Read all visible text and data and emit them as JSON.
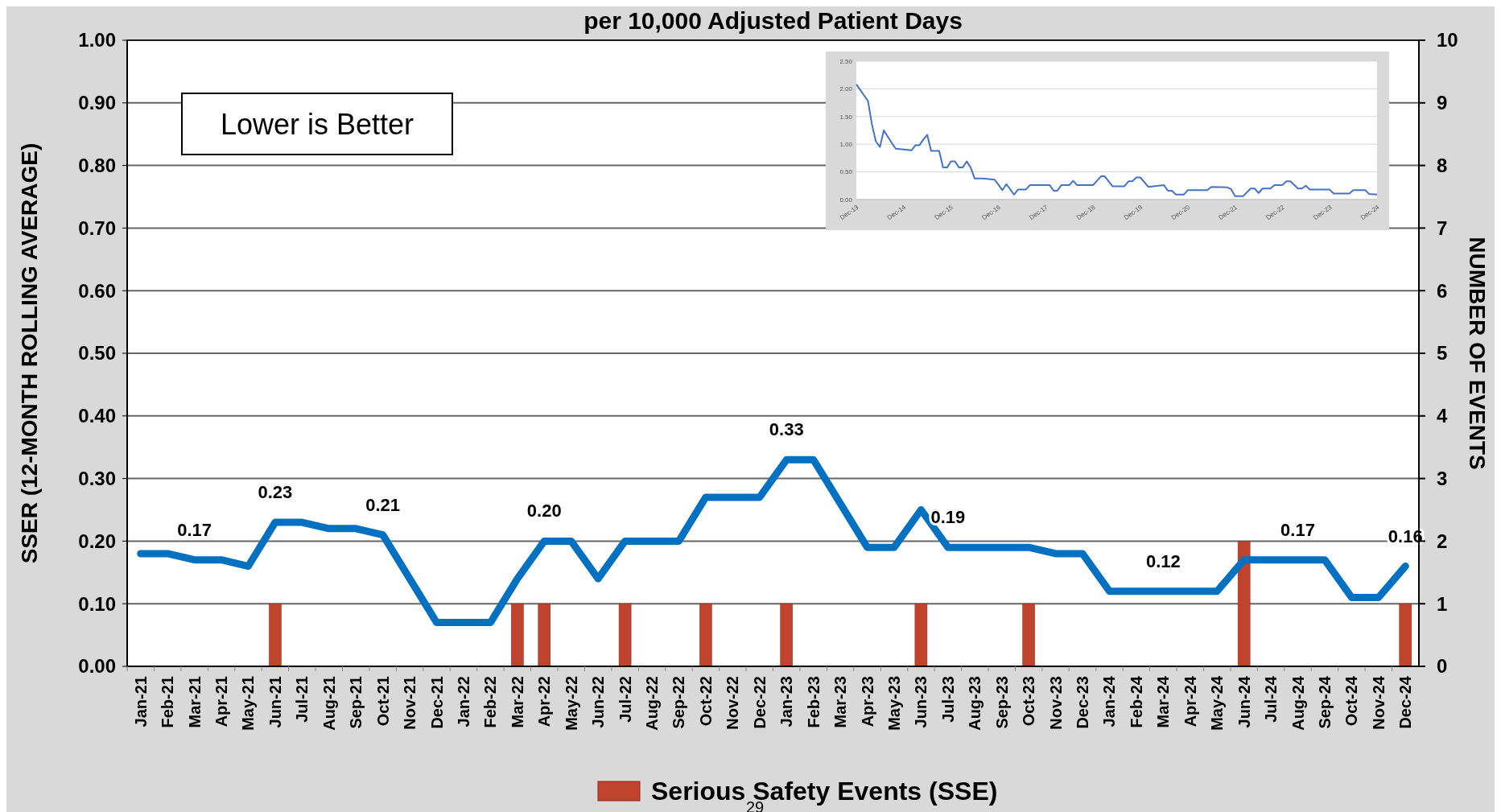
{
  "chart_data": [
    {
      "type": "line",
      "title": "per 10,000 Adjusted Patient Days",
      "ylabel": "SSER (12-MONTH ROLLING AVERAGE)",
      "y2label": "NUMBER OF EVENTS",
      "categories": [
        "Jan-21",
        "Feb-21",
        "Mar-21",
        "Apr-21",
        "May-21",
        "Jun-21",
        "Jul-21",
        "Aug-21",
        "Sep-21",
        "Oct-21",
        "Nov-21",
        "Dec-21",
        "Jan-22",
        "Feb-22",
        "Mar-22",
        "Apr-22",
        "May-22",
        "Jun-22",
        "Jul-22",
        "Aug-22",
        "Sep-22",
        "Oct-22",
        "Nov-22",
        "Dec-22",
        "Jan-23",
        "Feb-23",
        "Mar-23",
        "Apr-23",
        "May-23",
        "Jun-23",
        "Jul-23",
        "Aug-23",
        "Sep-23",
        "Oct-23",
        "Nov-23",
        "Dec-23",
        "Jan-24",
        "Feb-24",
        "Mar-24",
        "Apr-24",
        "May-24",
        "Jun-24",
        "Jul-24",
        "Aug-24",
        "Sep-24",
        "Oct-24",
        "Nov-24",
        "Dec-24"
      ],
      "series": [
        {
          "name": "Serious Safety Events (SSE)",
          "type": "bar",
          "axis": "y2",
          "color": "#c0432e",
          "values": [
            0,
            0,
            0,
            0,
            0,
            1,
            0,
            0,
            0,
            0,
            0,
            0,
            0,
            0,
            1,
            1,
            0,
            0,
            1,
            0,
            0,
            1,
            0,
            0,
            1,
            0,
            0,
            0,
            0,
            1,
            0,
            0,
            0,
            1,
            0,
            0,
            0,
            0,
            0,
            0,
            0,
            2,
            0,
            0,
            0,
            0,
            0,
            1
          ]
        },
        {
          "axis": "y",
          "color": "#0070c0",
          "values": [
            0.18,
            0.18,
            0.17,
            0.17,
            0.16,
            0.23,
            0.23,
            0.22,
            0.22,
            0.21,
            0.14,
            0.07,
            0.07,
            0.07,
            0.14,
            0.2,
            0.2,
            0.14,
            0.2,
            0.2,
            0.2,
            0.27,
            0.27,
            0.27,
            0.33,
            0.33,
            0.26,
            0.19,
            0.19,
            0.25,
            0.19,
            0.19,
            0.19,
            0.19,
            0.18,
            0.18,
            0.12,
            0.12,
            0.12,
            0.12,
            0.12,
            0.17,
            0.17,
            0.17,
            0.17,
            0.11,
            0.11,
            0.16
          ],
          "value_labels": [
            null,
            null,
            "0.17",
            null,
            null,
            "0.23",
            null,
            null,
            null,
            "0.21",
            null,
            null,
            null,
            null,
            null,
            "0.20",
            null,
            null,
            null,
            null,
            null,
            null,
            null,
            null,
            "0.33",
            null,
            null,
            null,
            null,
            null,
            "0.19",
            null,
            null,
            null,
            null,
            null,
            null,
            null,
            "0.12",
            null,
            null,
            null,
            null,
            "0.17",
            null,
            null,
            null,
            "0.16"
          ]
        }
      ],
      "ylim": [
        0,
        1
      ],
      "yticks": [
        {
          "value": 0,
          "label": "0.00"
        },
        {
          "value": 0.1,
          "label": "0.10"
        },
        {
          "value": 0.2,
          "label": "0.20"
        },
        {
          "value": 0.3,
          "label": "0.30"
        },
        {
          "value": 0.4,
          "label": "0.40"
        },
        {
          "value": 0.5,
          "label": "0.50"
        },
        {
          "value": 0.6,
          "label": "0.60"
        },
        {
          "value": 0.7,
          "label": "0.70"
        },
        {
          "value": 0.8,
          "label": "0.80"
        },
        {
          "value": 0.9,
          "label": "0.90"
        },
        {
          "value": 1,
          "label": "1.00"
        }
      ],
      "y2lim": [
        0,
        10
      ],
      "y2ticks": [
        0,
        1,
        2,
        3,
        4,
        5,
        6,
        7,
        8,
        9,
        10
      ],
      "grid": "y",
      "legend": "bottom",
      "line_style": "solid",
      "annotations": [
        "Lower is Better",
        "29"
      ]
    },
    {
      "type": "line",
      "color": "#4472c4",
      "grid": "y",
      "line_style": "solid",
      "x": [
        "2013-12",
        "2014-03",
        "2014-04",
        "2014-05",
        "2014-06",
        "2014-07",
        "2014-09",
        "2014-10",
        "2015-02",
        "2015-03",
        "2015-04",
        "2015-05",
        "2015-06",
        "2015-07",
        "2015-09",
        "2015-10",
        "2015-11",
        "2015-12",
        "2016-01",
        "2016-02",
        "2016-03",
        "2016-04",
        "2016-05",
        "2016-06",
        "2016-08",
        "2016-11",
        "2016-12",
        "2017-01",
        "2017-02",
        "2017-04",
        "2017-05",
        "2017-07",
        "2017-08",
        "2018-01",
        "2018-02",
        "2018-03",
        "2018-04",
        "2018-06",
        "2018-07",
        "2018-08",
        "2018-12",
        "2019-02",
        "2019-03",
        "2019-05",
        "2019-08",
        "2019-09",
        "2019-10",
        "2019-11",
        "2019-12",
        "2020-02",
        "2020-06",
        "2020-07",
        "2020-08",
        "2020-09",
        "2020-11",
        "2020-12",
        "2021-05",
        "2021-06",
        "2021-10",
        "2021-11",
        "2021-12",
        "2022-02",
        "2022-04",
        "2022-05",
        "2022-06",
        "2022-07",
        "2022-09",
        "2022-10",
        "2022-12",
        "2023-01",
        "2023-02",
        "2023-04",
        "2023-05",
        "2023-06",
        "2023-07",
        "2023-12",
        "2024-01",
        "2024-05",
        "2024-06",
        "2024-09",
        "2024-10",
        "2024-12"
      ],
      "values": [
        2.08,
        1.78,
        1.35,
        1.05,
        0.95,
        1.25,
        1.02,
        0.92,
        0.89,
        0.98,
        0.98,
        1.08,
        1.17,
        0.88,
        0.88,
        0.58,
        0.58,
        0.69,
        0.69,
        0.58,
        0.58,
        0.69,
        0.58,
        0.38,
        0.38,
        0.36,
        0.27,
        0.17,
        0.28,
        0.09,
        0.18,
        0.18,
        0.26,
        0.26,
        0.16,
        0.16,
        0.26,
        0.26,
        0.34,
        0.26,
        0.26,
        0.42,
        0.42,
        0.24,
        0.24,
        0.33,
        0.33,
        0.4,
        0.4,
        0.23,
        0.26,
        0.16,
        0.16,
        0.09,
        0.09,
        0.17,
        0.17,
        0.23,
        0.22,
        0.19,
        0.06,
        0.06,
        0.2,
        0.2,
        0.12,
        0.2,
        0.2,
        0.26,
        0.26,
        0.33,
        0.33,
        0.2,
        0.2,
        0.25,
        0.18,
        0.18,
        0.11,
        0.11,
        0.17,
        0.17,
        0.1,
        0.09
      ],
      "xlim": [
        "2013-12",
        "2024-12"
      ],
      "xticks": [
        {
          "value": "2013-12",
          "label": "Dec-13"
        },
        {
          "value": "2014-12",
          "label": "Dec-14"
        },
        {
          "value": "2015-12",
          "label": "Dec-15"
        },
        {
          "value": "2016-12",
          "label": "Dec-16"
        },
        {
          "value": "2017-12",
          "label": "Dec-17"
        },
        {
          "value": "2018-12",
          "label": "Dec-18"
        },
        {
          "value": "2019-12",
          "label": "Dec-19"
        },
        {
          "value": "2020-12",
          "label": "Dec-20"
        },
        {
          "value": "2021-12",
          "label": "Dec-21"
        },
        {
          "value": "2022-12",
          "label": "Dec-22"
        },
        {
          "value": "2023-12",
          "label": "Dec-23"
        },
        {
          "value": "2024-12",
          "label": "Dec-24"
        }
      ],
      "ylim": [
        0,
        2.5
      ],
      "yticks": [
        {
          "value": 0,
          "label": "0.00"
        },
        {
          "value": 0.5,
          "label": "0.50"
        },
        {
          "value": 1,
          "label": "1.00"
        },
        {
          "value": 1.5,
          "label": "1.50"
        },
        {
          "value": 2,
          "label": "2.00"
        },
        {
          "value": 2.5,
          "label": "2.50"
        }
      ]
    }
  ]
}
